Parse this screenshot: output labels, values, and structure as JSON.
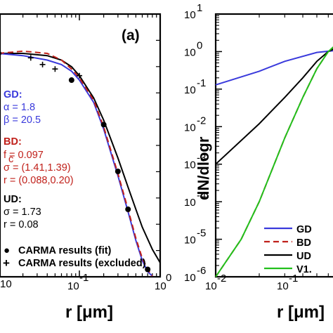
{
  "chart_data": [
    {
      "type": "line",
      "panel_label": "(a)",
      "xlabel": "r [μm]",
      "xscale": "log",
      "xlim": [
        0.01,
        1.0
      ],
      "yscale": "linear",
      "x_tick_labels": [
        "10",
        "-1",
        "10",
        "0",
        "10"
      ],
      "annotations": {
        "gd": {
          "title": "GD:",
          "lines": [
            "α = 1.8",
            "β = 20.5"
          ],
          "color": "#3a3adc"
        },
        "bd": {
          "title": "BD:",
          "lines": [
            "f  = 0.097",
            "c",
            "σ = (1.41,1.39)",
            "r = (0.088,0.20)"
          ],
          "color": "#c0201a"
        },
        "ud": {
          "title": "UD:",
          "lines": [
            "σ = 1.73",
            "r = 0.08"
          ],
          "color": "#000000"
        }
      },
      "legend": [
        {
          "marker": "●",
          "label": "CARMA results (fit)"
        },
        {
          "marker": "+",
          "label": "CARMA results (excluded)"
        }
      ],
      "series": [
        {
          "line_style": "solid",
          "color": "#000000",
          "x": [
            0.01,
            0.02,
            0.04,
            0.06,
            0.08,
            0.1,
            0.15,
            0.2,
            0.3,
            0.4,
            0.5,
            0.6,
            0.8,
            1.0
          ],
          "y": [
            1.0,
            1.0,
            0.99,
            0.97,
            0.94,
            0.9,
            0.8,
            0.7,
            0.53,
            0.4,
            0.3,
            0.22,
            0.12,
            0.06
          ]
        },
        {
          "line_style": "solid",
          "color": "#3a3adc",
          "x": [
            0.01,
            0.02,
            0.04,
            0.06,
            0.08,
            0.1,
            0.15,
            0.2,
            0.3,
            0.4,
            0.5,
            0.6,
            0.7,
            0.8
          ],
          "y": [
            1.0,
            0.99,
            0.97,
            0.95,
            0.92,
            0.88,
            0.78,
            0.66,
            0.45,
            0.29,
            0.16,
            0.07,
            0.02,
            0.0
          ]
        },
        {
          "line_style": "dashed",
          "color": "#c0201a",
          "x": [
            0.01,
            0.02,
            0.04,
            0.06,
            0.08,
            0.1,
            0.15,
            0.2,
            0.3,
            0.4,
            0.5,
            0.6,
            0.7,
            0.8
          ],
          "y": [
            1.0,
            1.01,
            1.0,
            0.97,
            0.93,
            0.89,
            0.79,
            0.67,
            0.46,
            0.3,
            0.17,
            0.08,
            0.03,
            0.0
          ]
        }
      ],
      "points_fit": {
        "x": [
          0.01,
          0.08,
          0.2,
          0.3,
          0.4,
          0.7
        ],
        "y": [
          1.0,
          0.88,
          0.68,
          0.47,
          0.3,
          0.03
        ]
      },
      "points_excluded": {
        "x": [
          0.025,
          0.035,
          0.05,
          0.1
        ],
        "y": [
          0.98,
          0.95,
          0.93,
          0.9
        ]
      }
    },
    {
      "type": "line",
      "xlabel": "r [μm]",
      "ylabel": "dN/dlogr",
      "xscale": "log",
      "yscale": "log",
      "xlim": [
        0.01,
        1.0
      ],
      "ylim": [
        1e-06,
        10
      ],
      "y_tick_labels": [
        {
          "base": "10",
          "exp": "1"
        },
        {
          "base": "10",
          "exp": "0"
        },
        {
          "base": "10",
          "exp": "-1"
        },
        {
          "base": "10",
          "exp": "-2"
        },
        {
          "base": "10",
          "exp": "-3"
        },
        {
          "base": "10",
          "exp": "-4"
        },
        {
          "base": "10",
          "exp": "-5"
        },
        {
          "base": "10",
          "exp": "-6"
        }
      ],
      "x_tick_labels": [
        {
          "base": "10",
          "exp": "-2"
        },
        {
          "base": "10",
          "exp": "-1"
        }
      ],
      "legend_labels": [
        "GD",
        "BD",
        "UD",
        "V1."
      ],
      "series": [
        {
          "name": "GD",
          "color": "#3a3adc",
          "line_style": "solid",
          "x": [
            0.01,
            0.02,
            0.03,
            0.05,
            0.08,
            0.1,
            0.15,
            0.2,
            0.3
          ],
          "y": [
            0.13,
            0.3,
            0.55,
            0.95,
            1.15,
            1.0,
            0.5,
            0.2,
            0.02
          ]
        },
        {
          "name": "BD",
          "color": "#c0201a",
          "line_style": "dashed",
          "x": [
            0.01,
            0.015,
            0.02,
            0.03,
            0.04,
            0.05,
            0.06,
            0.08,
            0.1,
            0.13,
            0.16,
            0.2,
            0.25,
            0.3
          ],
          "y": [
            1e-06,
            1e-05,
            0.0001,
            0.005,
            0.06,
            0.35,
            1.0,
            2.6,
            2.0,
            0.7,
            0.25,
            0.12,
            0.06,
            0.04
          ]
        },
        {
          "name": "UD",
          "color": "#000000",
          "line_style": "solid",
          "x": [
            0.01,
            0.02,
            0.03,
            0.04,
            0.05,
            0.06,
            0.08,
            0.1,
            0.13,
            0.16,
            0.2,
            0.25,
            0.3
          ],
          "y": [
            0.001,
            0.012,
            0.06,
            0.2,
            0.55,
            1.0,
            1.7,
            1.4,
            0.8,
            0.45,
            0.25,
            0.08,
            0.03
          ]
        },
        {
          "name": "V1.",
          "color": "#22c01c",
          "line_style": "solid",
          "x": [
            0.01,
            0.015,
            0.02,
            0.03,
            0.04,
            0.05,
            0.06,
            0.08,
            0.1,
            0.13,
            0.16,
            0.2,
            0.25,
            0.28,
            0.3
          ],
          "y": [
            1e-06,
            1e-05,
            0.0001,
            0.005,
            0.06,
            0.35,
            1.0,
            2.7,
            2.0,
            0.6,
            0.12,
            0.01,
            0.002,
            0.003,
            0.005
          ]
        }
      ]
    }
  ]
}
